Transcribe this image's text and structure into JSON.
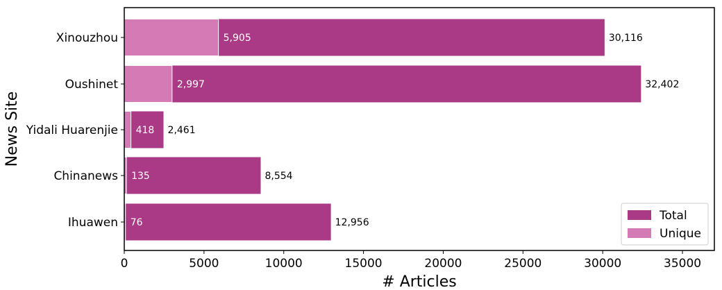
{
  "chart_data": {
    "type": "bar",
    "orientation": "horizontal",
    "title": "",
    "xlabel": "# Articles",
    "ylabel": "News Site",
    "xlim": [
      0,
      37000
    ],
    "x_ticks": [
      0,
      5000,
      10000,
      15000,
      20000,
      25000,
      30000,
      35000
    ],
    "categories": [
      "Xinouzhou",
      "Oushinet",
      "Yidali Huarenjie",
      "Chinanews",
      "Ihuawen"
    ],
    "series": [
      {
        "name": "Total",
        "color": "#aa3a86",
        "values": [
          30116,
          32402,
          2461,
          8554,
          12956
        ],
        "labels": [
          "30,116",
          "32,402",
          "2,461",
          "8,554",
          "12,956"
        ]
      },
      {
        "name": "Unique",
        "color": "#d47ab5",
        "values": [
          5905,
          2997,
          418,
          135,
          76
        ],
        "labels": [
          "5,905",
          "2,997",
          "418",
          "135",
          "76"
        ]
      }
    ],
    "grid": false,
    "legend_position": "bottom-right"
  }
}
